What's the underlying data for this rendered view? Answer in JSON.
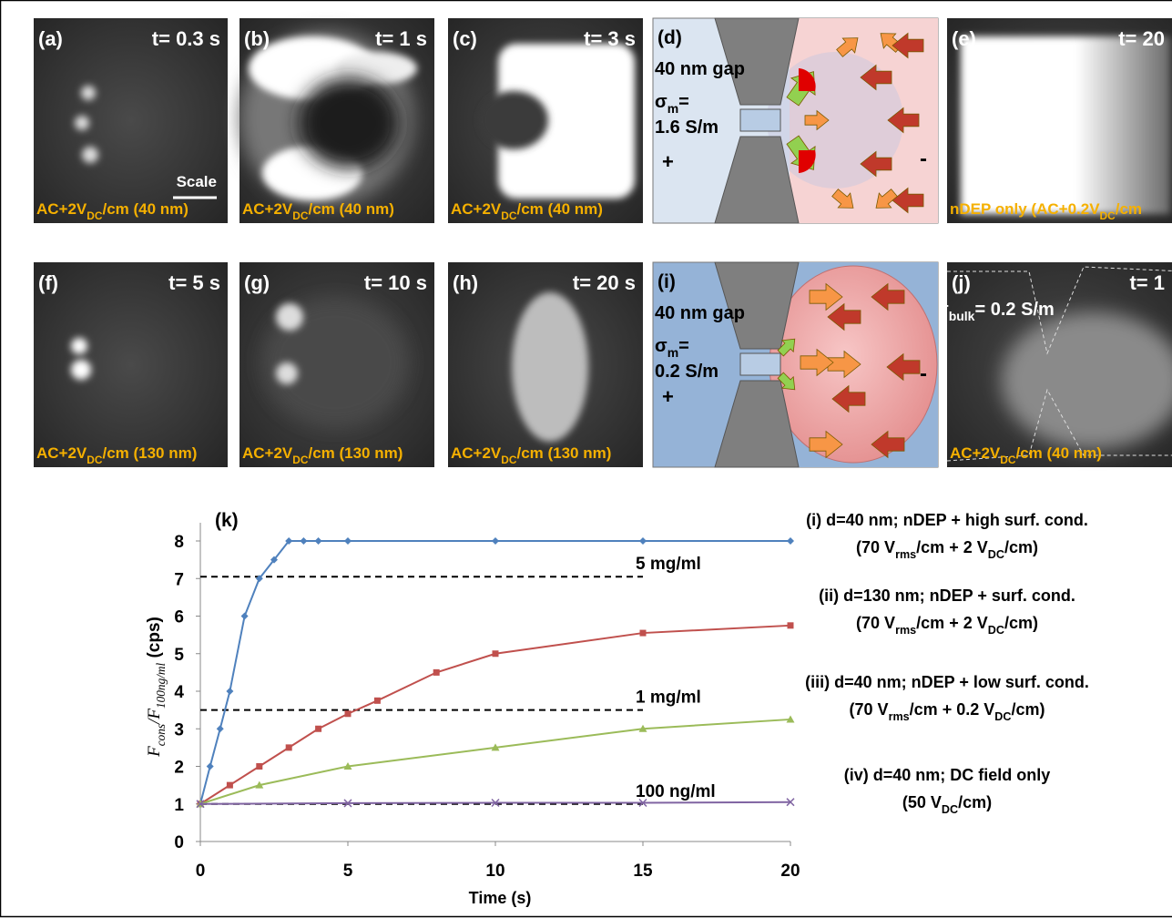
{
  "panels": [
    {
      "label": "(a)",
      "time": "t= 0.3 s",
      "caption": [
        "AC+2V",
        "DC",
        "/cm (40 nm)"
      ],
      "scale": "Scale"
    },
    {
      "label": "(b)",
      "time": "t= 1 s",
      "caption": [
        "AC+2V",
        "DC",
        "/cm (40 nm)"
      ]
    },
    {
      "label": "(c)",
      "time": "t= 3 s",
      "caption": [
        "AC+2V",
        "DC",
        "/cm (40 nm)"
      ]
    },
    {
      "label": "(e)",
      "time": "t= 20",
      "caption": [
        "nDEP only (AC+0.2V",
        "DC",
        "/cm"
      ]
    },
    {
      "label": "(f)",
      "time": "t= 5 s",
      "caption": [
        "AC+2V",
        "DC",
        "/cm (130 nm)"
      ]
    },
    {
      "label": "(g)",
      "time": "t= 10 s",
      "caption": [
        "AC+2V",
        "DC",
        "/cm (130 nm)"
      ]
    },
    {
      "label": "(h)",
      "time": "t= 20 s",
      "caption": [
        "AC+2V",
        "DC",
        "/cm (130 nm)"
      ]
    },
    {
      "label": "(j)",
      "time": "t= 1",
      "caption": [
        "AC+2V",
        "DC",
        "/cm (40 nm)"
      ],
      "sigma": [
        "σ",
        "bulk",
        "= 0.2 S/m"
      ]
    }
  ],
  "diagrams": [
    {
      "label": "(d)",
      "gap": "40 nm gap",
      "sigma": [
        "σ",
        "m",
        "="
      ],
      "sigma_value": "1.6 S/m",
      "plus": "+",
      "minus": "-"
    },
    {
      "label": "(i)",
      "gap": "40 nm gap",
      "sigma": [
        "σ",
        "m",
        "="
      ],
      "sigma_value": "0.2 S/m",
      "plus": "+",
      "minus": "-"
    }
  ],
  "chart_data": {
    "type": "line",
    "title": "(k)",
    "x_label": "Time (s)",
    "y_label": [
      "F",
      "cons",
      "/F",
      "100ng/ml",
      " (cps)"
    ],
    "xlim": [
      0,
      20
    ],
    "ylim": [
      0,
      8
    ],
    "xticks": [
      0,
      5,
      10,
      15,
      20
    ],
    "yticks": [
      0,
      1,
      2,
      3,
      4,
      5,
      6,
      7,
      8
    ],
    "grid": false,
    "series": [
      {
        "name": "(i) d=40 nm; nDEP + high surf. cond.",
        "conditions": [
          "(70 V",
          "rms",
          "/cm + 2 V",
          "DC",
          "/cm)"
        ],
        "color": "#4f81bd",
        "marker": "diamond",
        "x": [
          0,
          0.33,
          0.67,
          1,
          1.5,
          2,
          2.5,
          3,
          3.5,
          4,
          5,
          10,
          15,
          20
        ],
        "values": [
          1,
          2,
          3,
          4,
          6,
          7,
          7.5,
          8,
          8,
          8,
          8,
          8,
          8,
          8
        ]
      },
      {
        "name": "(ii) d=130 nm; nDEP + surf. cond.",
        "conditions": [
          "(70 V",
          "rms",
          "/cm + 2 V",
          "DC",
          "/cm)"
        ],
        "color": "#c0504d",
        "marker": "square",
        "x": [
          0,
          1,
          2,
          3,
          4,
          5,
          6,
          8,
          10,
          15,
          20
        ],
        "values": [
          1,
          1.5,
          2,
          2.5,
          3,
          3.4,
          3.75,
          4.5,
          5,
          5.55,
          5.75
        ]
      },
      {
        "name": "(iii) d=40 nm; nDEP + low surf. cond.",
        "conditions": [
          "(70 V",
          "rms",
          "/cm + 0.2 V",
          "DC",
          "/cm)"
        ],
        "color": "#9bbb59",
        "marker": "triangle",
        "x": [
          0,
          2,
          5,
          10,
          15,
          20
        ],
        "values": [
          1,
          1.5,
          2,
          2.5,
          3,
          3.25
        ]
      },
      {
        "name": "(iv) d=40 nm; DC field only",
        "conditions": [
          "(50 V",
          "DC",
          "/cm)"
        ],
        "color": "#8064a2",
        "marker": "x",
        "x": [
          0,
          5,
          10,
          15,
          20
        ],
        "values": [
          1,
          1.02,
          1.03,
          1.03,
          1.05
        ]
      }
    ],
    "reference_lines": [
      {
        "value": 7.05,
        "end": 15,
        "label": "5 mg/ml"
      },
      {
        "value": 3.5,
        "end": 15,
        "label": "1 mg/ml"
      },
      {
        "value": 1,
        "end": 15,
        "label": "100 ng/ml"
      }
    ]
  }
}
